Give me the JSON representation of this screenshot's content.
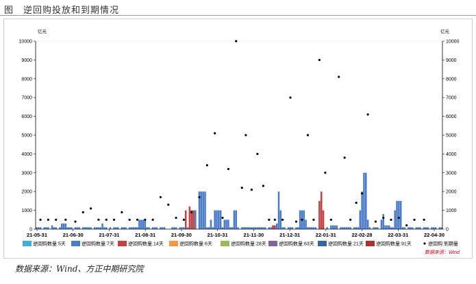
{
  "header": {
    "title": "图　逆回购投放和到期情况"
  },
  "footer": {
    "source": "数据来源：Wind、方正中期研究院"
  },
  "chart_data": {
    "type": "bar",
    "unit_left": "亿元",
    "unit_right": "亿元",
    "ylim": [
      0,
      10000
    ],
    "yticks": [
      0,
      1000,
      2000,
      3000,
      4000,
      5000,
      6000,
      7000,
      8000,
      9000,
      10000
    ],
    "x_tick_labels": [
      "21-05-31",
      "21-06-30",
      "21-07-31",
      "21-08-31",
      "21-09-30",
      "21-10-31",
      "21-11-30",
      "21-12-31",
      "22-01-31",
      "22-02-28",
      "22-03-31",
      "22-04-30"
    ],
    "n_days": 210,
    "legend_note": "数据来源：Wind",
    "colors": {
      "d5": "#3cb0d8",
      "d7": "#4a7cc9",
      "d14": "#c54040",
      "d6": "#f79646",
      "d28": "#9bbb59",
      "d63": "#8064a2",
      "d21": "#34679f",
      "d91": "#b03030",
      "exp": "#000000"
    },
    "series": [
      {
        "key": "d5",
        "name": "逆回购数量:5天",
        "type": "bar",
        "points": []
      },
      {
        "key": "d7",
        "name": "逆回购数量:7天",
        "type": "bar",
        "points": [
          [
            0,
            100
          ],
          [
            1,
            100
          ],
          [
            2,
            100
          ],
          [
            4,
            100
          ],
          [
            5,
            100
          ],
          [
            6,
            100
          ],
          [
            8,
            200
          ],
          [
            9,
            100
          ],
          [
            10,
            100
          ],
          [
            12,
            100
          ],
          [
            13,
            300
          ],
          [
            14,
            300
          ],
          [
            15,
            300
          ],
          [
            16,
            100
          ],
          [
            17,
            100
          ],
          [
            18,
            100
          ],
          [
            20,
            100
          ],
          [
            21,
            100
          ],
          [
            22,
            100
          ],
          [
            24,
            100
          ],
          [
            25,
            100
          ],
          [
            26,
            100
          ],
          [
            27,
            100
          ],
          [
            28,
            100
          ],
          [
            30,
            100
          ],
          [
            31,
            100
          ],
          [
            32,
            100
          ],
          [
            33,
            100
          ],
          [
            34,
            300
          ],
          [
            35,
            100
          ],
          [
            36,
            100
          ],
          [
            38,
            100
          ],
          [
            40,
            100
          ],
          [
            41,
            100
          ],
          [
            42,
            100
          ],
          [
            44,
            100
          ],
          [
            45,
            100
          ],
          [
            46,
            100
          ],
          [
            48,
            100
          ],
          [
            49,
            100
          ],
          [
            50,
            100
          ],
          [
            51,
            100
          ],
          [
            52,
            100
          ],
          [
            53,
            500
          ],
          [
            54,
            500
          ],
          [
            55,
            500
          ],
          [
            56,
            500
          ],
          [
            57,
            100
          ],
          [
            58,
            100
          ],
          [
            60,
            100
          ],
          [
            61,
            100
          ],
          [
            62,
            100
          ],
          [
            64,
            100
          ],
          [
            65,
            100
          ],
          [
            66,
            100
          ],
          [
            70,
            100
          ],
          [
            71,
            100
          ],
          [
            72,
            100
          ],
          [
            74,
            100
          ],
          [
            75,
            100
          ],
          [
            76,
            100
          ],
          [
            78,
            100
          ],
          [
            80,
            100
          ],
          [
            81,
            1000
          ],
          [
            82,
            1000
          ],
          [
            84,
            2000
          ],
          [
            85,
            2000
          ],
          [
            86,
            2000
          ],
          [
            87,
            2000
          ],
          [
            88,
            100
          ],
          [
            89,
            100
          ],
          [
            90,
            500
          ],
          [
            91,
            100
          ],
          [
            92,
            1000
          ],
          [
            93,
            1000
          ],
          [
            94,
            1000
          ],
          [
            95,
            1000
          ],
          [
            96,
            100
          ],
          [
            97,
            500
          ],
          [
            98,
            500
          ],
          [
            99,
            500
          ],
          [
            100,
            100
          ],
          [
            101,
            100
          ],
          [
            102,
            1000
          ],
          [
            103,
            1000
          ],
          [
            104,
            100
          ],
          [
            106,
            100
          ],
          [
            107,
            100
          ],
          [
            108,
            100
          ],
          [
            109,
            100
          ],
          [
            110,
            100
          ],
          [
            111,
            100
          ],
          [
            112,
            100
          ],
          [
            113,
            100
          ],
          [
            114,
            100
          ],
          [
            115,
            100
          ],
          [
            116,
            100
          ],
          [
            117,
            100
          ],
          [
            118,
            100
          ],
          [
            120,
            100
          ],
          [
            121,
            100
          ],
          [
            122,
            200
          ],
          [
            123,
            200
          ],
          [
            124,
            300
          ],
          [
            125,
            2000
          ],
          [
            126,
            1000
          ],
          [
            127,
            100
          ],
          [
            128,
            100
          ],
          [
            130,
            100
          ],
          [
            131,
            100
          ],
          [
            132,
            100
          ],
          [
            134,
            100
          ],
          [
            135,
            100
          ],
          [
            136,
            1000
          ],
          [
            137,
            1000
          ],
          [
            138,
            1000
          ],
          [
            139,
            500
          ],
          [
            140,
            100
          ],
          [
            141,
            100
          ],
          [
            142,
            100
          ],
          [
            143,
            100
          ],
          [
            144,
            100
          ],
          [
            147,
            100
          ],
          [
            148,
            100
          ],
          [
            150,
            100
          ],
          [
            152,
            200
          ],
          [
            153,
            200
          ],
          [
            154,
            200
          ],
          [
            155,
            200
          ],
          [
            157,
            100
          ],
          [
            158,
            100
          ],
          [
            159,
            100
          ],
          [
            160,
            100
          ],
          [
            161,
            100
          ],
          [
            162,
            100
          ],
          [
            164,
            100
          ],
          [
            165,
            100
          ],
          [
            166,
            100
          ],
          [
            167,
            1000
          ],
          [
            168,
            2000
          ],
          [
            169,
            3000
          ],
          [
            170,
            3000
          ],
          [
            171,
            500
          ],
          [
            172,
            100
          ],
          [
            174,
            100
          ],
          [
            175,
            100
          ],
          [
            176,
            100
          ],
          [
            178,
            500
          ],
          [
            179,
            800
          ],
          [
            180,
            200
          ],
          [
            181,
            200
          ],
          [
            182,
            200
          ],
          [
            183,
            100
          ],
          [
            184,
            100
          ],
          [
            185,
            1000
          ],
          [
            186,
            1500
          ],
          [
            187,
            1500
          ],
          [
            188,
            1500
          ],
          [
            189,
            100
          ],
          [
            190,
            100
          ],
          [
            192,
            100
          ],
          [
            193,
            100
          ],
          [
            194,
            100
          ],
          [
            196,
            100
          ],
          [
            197,
            100
          ],
          [
            198,
            100
          ],
          [
            200,
            100
          ],
          [
            201,
            100
          ],
          [
            202,
            100
          ],
          [
            204,
            100
          ],
          [
            205,
            100
          ],
          [
            206,
            100
          ],
          [
            208,
            100
          ],
          [
            209,
            100
          ]
        ]
      },
      {
        "key": "d14",
        "name": "逆回购数量:14天",
        "type": "bar",
        "points": [
          [
            77,
            1000
          ],
          [
            79,
            1200
          ],
          [
            80,
            1000
          ],
          [
            81,
            1000
          ],
          [
            122,
            200
          ],
          [
            123,
            200
          ],
          [
            146,
            1500
          ],
          [
            147,
            2000
          ],
          [
            148,
            1000
          ]
        ]
      },
      {
        "key": "d6",
        "name": "逆回购数量:6天",
        "type": "bar",
        "points": []
      },
      {
        "key": "d28",
        "name": "逆回购数量:28天",
        "type": "bar",
        "points": []
      },
      {
        "key": "d63",
        "name": "逆回购数量:63天",
        "type": "bar",
        "points": []
      },
      {
        "key": "d21",
        "name": "逆回购数量:21天",
        "type": "bar",
        "points": []
      },
      {
        "key": "d91",
        "name": "逆回购数量:91天",
        "type": "bar",
        "points": []
      },
      {
        "key": "exp",
        "name": "逆回购:到期量",
        "type": "scatter",
        "points": [
          [
            2,
            500
          ],
          [
            6,
            500
          ],
          [
            10,
            500
          ],
          [
            15,
            500
          ],
          [
            20,
            400
          ],
          [
            24,
            900
          ],
          [
            28,
            1100
          ],
          [
            32,
            500
          ],
          [
            36,
            500
          ],
          [
            40,
            500
          ],
          [
            44,
            900
          ],
          [
            48,
            500
          ],
          [
            52,
            500
          ],
          [
            56,
            500
          ],
          [
            60,
            500
          ],
          [
            64,
            1700
          ],
          [
            68,
            1300
          ],
          [
            72,
            600
          ],
          [
            76,
            500
          ],
          [
            80,
            900
          ],
          [
            84,
            1700
          ],
          [
            88,
            3400
          ],
          [
            92,
            5100
          ],
          [
            96,
            600
          ],
          [
            99,
            3200
          ],
          [
            103,
            10000
          ],
          [
            106,
            2200
          ],
          [
            108,
            5000
          ],
          [
            111,
            2100
          ],
          [
            114,
            4000
          ],
          [
            117,
            2300
          ],
          [
            120,
            500
          ],
          [
            123,
            500
          ],
          [
            127,
            500
          ],
          [
            131,
            7000
          ],
          [
            134,
            400
          ],
          [
            137,
            500
          ],
          [
            140,
            5000
          ],
          [
            143,
            500
          ],
          [
            146,
            9000
          ],
          [
            149,
            3000
          ],
          [
            152,
            500
          ],
          [
            156,
            8100
          ],
          [
            159,
            3800
          ],
          [
            162,
            500
          ],
          [
            165,
            1400
          ],
          [
            168,
            1900
          ],
          [
            171,
            6100
          ],
          [
            175,
            400
          ],
          [
            179,
            600
          ],
          [
            183,
            500
          ],
          [
            187,
            600
          ],
          [
            191,
            200
          ],
          [
            195,
            500
          ],
          [
            200,
            500
          ]
        ]
      }
    ]
  }
}
